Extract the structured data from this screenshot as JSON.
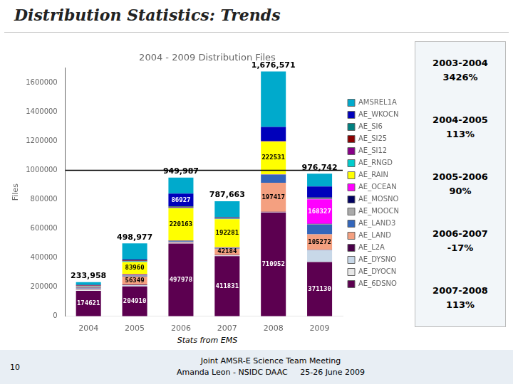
{
  "chart_data": {
    "type": "bar",
    "title": "Distribution Statistics: Trends",
    "subtitle": "2004 - 2009 Distribution Files",
    "ylabel": "Files",
    "source": "Stats from EMS",
    "categories": [
      "2004",
      "2005",
      "2006",
      "2007",
      "2008",
      "2009"
    ],
    "stacked": true,
    "series": [
      {
        "name": "AE_6DSNO",
        "color": "#5c0050",
        "values": [
          174621,
          204910,
          497978,
          411831,
          710952,
          371130
        ],
        "value_labels": [
          "174621",
          "204910",
          "497978",
          "411831",
          "710952",
          "371130"
        ]
      },
      {
        "name": "AE_DYOCN",
        "color": "#e8e8e8",
        "values": [
          3500,
          4000,
          3000,
          3000,
          2000,
          3000
        ]
      },
      {
        "name": "AE_DYSNO",
        "color": "#c8d8e8",
        "values": [
          3500,
          4000,
          3000,
          3000,
          2000,
          80000
        ]
      },
      {
        "name": "AE_L2A",
        "color": "#4a004a",
        "values": [
          3000,
          3500,
          2500,
          2500,
          1500,
          2500
        ]
      },
      {
        "name": "AE_LAND",
        "color": "#f4a080",
        "values": [
          3500,
          56349,
          3500,
          42184,
          197417,
          105272
        ],
        "value_labels": [
          null,
          "56349",
          null,
          "42184",
          "197417",
          "105272"
        ]
      },
      {
        "name": "AE_LAND3",
        "color": "#3366bb",
        "values": [
          3500,
          4500,
          3500,
          3500,
          55000,
          65000
        ]
      },
      {
        "name": "AE_MOOCN",
        "color": "#aaaaaa",
        "values": [
          3000,
          3500,
          2500,
          2500,
          1500,
          3000
        ]
      },
      {
        "name": "AE_MOSNO",
        "color": "#000060",
        "values": [
          3000,
          3500,
          2500,
          2500,
          1500,
          3000
        ]
      },
      {
        "name": "AE_OCEAN",
        "color": "#ff00ff",
        "values": [
          2000,
          3500,
          2000,
          2000,
          1000,
          168327
        ],
        "value_labels": [
          null,
          null,
          null,
          null,
          null,
          "168327"
        ]
      },
      {
        "name": "AE_RAIN",
        "color": "#ffff00",
        "values": [
          3500,
          83960,
          220163,
          192281,
          222531,
          0
        ],
        "value_labels": [
          null,
          "83960",
          "220163",
          "192281",
          "222531",
          null
        ]
      },
      {
        "name": "AE_RNGD",
        "color": "#00cccc",
        "values": [
          3000,
          4000,
          3000,
          3000,
          1500,
          3000
        ]
      },
      {
        "name": "AE_SI12",
        "color": "#880088",
        "values": [
          3500,
          4500,
          3500,
          3500,
          2000,
          3500
        ]
      },
      {
        "name": "AE_SI25",
        "color": "#8b0000",
        "values": [
          3000,
          4000,
          3000,
          3000,
          1500,
          3000
        ]
      },
      {
        "name": "AE_SI6",
        "color": "#008080",
        "values": [
          3000,
          4000,
          3000,
          3000,
          1500,
          3000
        ]
      },
      {
        "name": "AE_WKOCN",
        "color": "#0000bb",
        "values": [
          2000,
          3500,
          86927,
          2500,
          95000,
          75000
        ],
        "value_labels": [
          null,
          null,
          "86927",
          null,
          null,
          null
        ]
      },
      {
        "name": "AMSREL1A",
        "color": "#00aacc",
        "values": [
          16337,
          107258,
          109919,
          107367,
          379671,
          88013
        ]
      }
    ],
    "totals": [
      233958,
      498977,
      949987,
      787663,
      1676571,
      976742
    ],
    "total_labels": [
      "233,958",
      "498,977",
      "949,987",
      "787,663",
      "1,676,571",
      "976,742"
    ],
    "hline": 1000000,
    "ylim": [
      0,
      1700000
    ],
    "yticks": [
      0,
      200000,
      400000,
      600000,
      800000,
      1000000,
      1200000,
      1400000,
      1600000
    ],
    "grid": false,
    "legend": "right",
    "trends": [
      {
        "label": "2003-2004",
        "text": "3426%"
      },
      {
        "label": "2004-2005",
        "text": "113%"
      },
      {
        "label": "2005-2006",
        "text": "90%"
      },
      {
        "label": "2006-2007",
        "text": "-17%"
      },
      {
        "label": "2007-2008",
        "text": "113%"
      }
    ],
    "footer": {
      "number": "10",
      "lines": [
        "Joint AMSR-E Science Team Meeting",
        "Amanda Leon - NSIDC DAAC     25-26 June 2009"
      ]
    }
  }
}
